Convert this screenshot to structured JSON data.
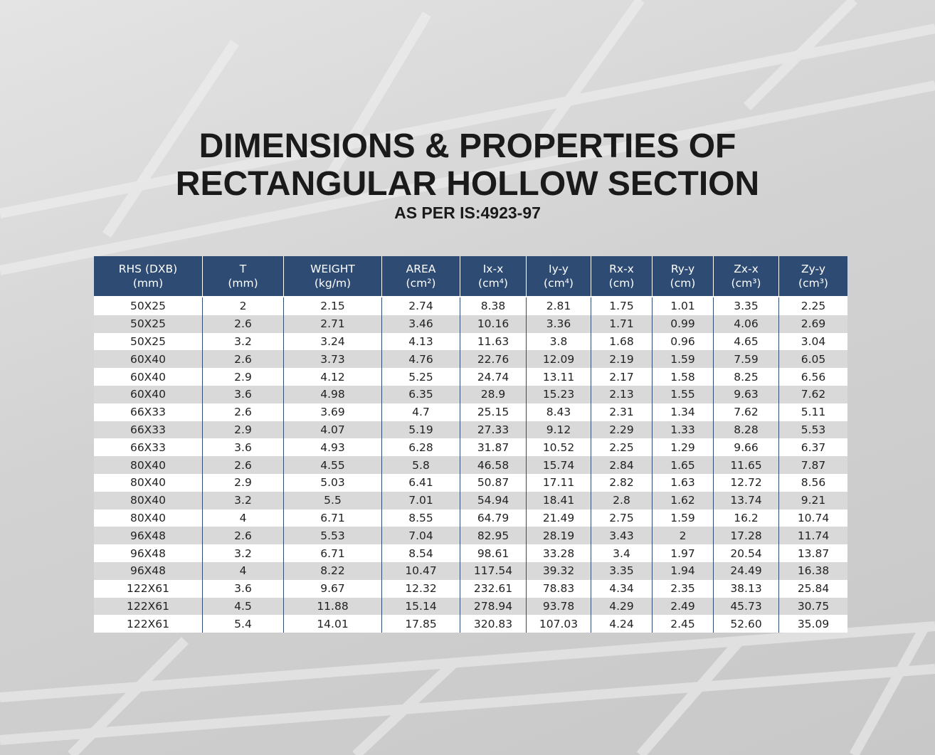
{
  "header": {
    "title_line1": "DIMENSIONS & PROPERTIES OF",
    "title_line2": "RECTANGULAR HOLLOW SECTION",
    "subtitle": "AS PER IS:4923-97"
  },
  "table": {
    "columns": [
      {
        "name": "RHS (DXB)",
        "unit": "(mm)"
      },
      {
        "name": "T",
        "unit": "(mm)"
      },
      {
        "name": "WEIGHT",
        "unit": "(kg/m)"
      },
      {
        "name": "AREA",
        "unit": "(cm²)"
      },
      {
        "name": "Ix-x",
        "unit": "(cm⁴)"
      },
      {
        "name": "Iy-y",
        "unit": "(cm⁴)"
      },
      {
        "name": "Rx-x",
        "unit": "(cm)"
      },
      {
        "name": "Ry-y",
        "unit": "(cm)"
      },
      {
        "name": "Zx-x",
        "unit": "(cm³)"
      },
      {
        "name": "Zy-y",
        "unit": "(cm³)"
      }
    ],
    "rows": [
      [
        "50X25",
        "2",
        "2.15",
        "2.74",
        "8.38",
        "2.81",
        "1.75",
        "1.01",
        "3.35",
        "2.25"
      ],
      [
        "50X25",
        "2.6",
        "2.71",
        "3.46",
        "10.16",
        "3.36",
        "1.71",
        "0.99",
        "4.06",
        "2.69"
      ],
      [
        "50X25",
        "3.2",
        "3.24",
        "4.13",
        "11.63",
        "3.8",
        "1.68",
        "0.96",
        "4.65",
        "3.04"
      ],
      [
        "60X40",
        "2.6",
        "3.73",
        "4.76",
        "22.76",
        "12.09",
        "2.19",
        "1.59",
        "7.59",
        "6.05"
      ],
      [
        "60X40",
        "2.9",
        "4.12",
        "5.25",
        "24.74",
        "13.11",
        "2.17",
        "1.58",
        "8.25",
        "6.56"
      ],
      [
        "60X40",
        "3.6",
        "4.98",
        "6.35",
        "28.9",
        "15.23",
        "2.13",
        "1.55",
        "9.63",
        "7.62"
      ],
      [
        "66X33",
        "2.6",
        "3.69",
        "4.7",
        "25.15",
        "8.43",
        "2.31",
        "1.34",
        "7.62",
        "5.11"
      ],
      [
        "66X33",
        "2.9",
        "4.07",
        "5.19",
        "27.33",
        "9.12",
        "2.29",
        "1.33",
        "8.28",
        "5.53"
      ],
      [
        "66X33",
        "3.6",
        "4.93",
        "6.28",
        "31.87",
        "10.52",
        "2.25",
        "1.29",
        "9.66",
        "6.37"
      ],
      [
        "80X40",
        "2.6",
        "4.55",
        "5.8",
        "46.58",
        "15.74",
        "2.84",
        "1.65",
        "11.65",
        "7.87"
      ],
      [
        "80X40",
        "2.9",
        "5.03",
        "6.41",
        "50.87",
        "17.11",
        "2.82",
        "1.63",
        "12.72",
        "8.56"
      ],
      [
        "80X40",
        "3.2",
        "5.5",
        "7.01",
        "54.94",
        "18.41",
        "2.8",
        "1.62",
        "13.74",
        "9.21"
      ],
      [
        "80X40",
        "4",
        "6.71",
        "8.55",
        "64.79",
        "21.49",
        "2.75",
        "1.59",
        "16.2",
        "10.74"
      ],
      [
        "96X48",
        "2.6",
        "5.53",
        "7.04",
        "82.95",
        "28.19",
        "3.43",
        "2",
        "17.28",
        "11.74"
      ],
      [
        "96X48",
        "3.2",
        "6.71",
        "8.54",
        "98.61",
        "33.28",
        "3.4",
        "1.97",
        "20.54",
        "13.87"
      ],
      [
        "96X48",
        "4",
        "8.22",
        "10.47",
        "117.54",
        "39.32",
        "3.35",
        "1.94",
        "24.49",
        "16.38"
      ],
      [
        "122X61",
        "3.6",
        "9.67",
        "12.32",
        "232.61",
        "78.83",
        "4.34",
        "2.35",
        "38.13",
        "25.84"
      ],
      [
        "122X61",
        "4.5",
        "11.88",
        "15.14",
        "278.94",
        "93.78",
        "4.29",
        "2.49",
        "45.73",
        "30.75"
      ],
      [
        "122X61",
        "5.4",
        "14.01",
        "17.85",
        "320.83",
        "107.03",
        "4.24",
        "2.45",
        "52.60",
        "35.09"
      ]
    ]
  }
}
